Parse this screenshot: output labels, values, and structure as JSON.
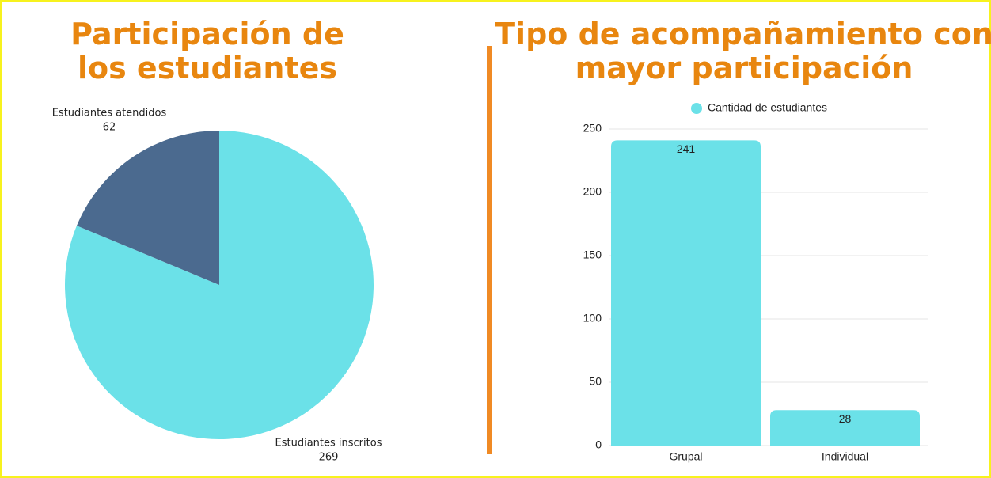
{
  "chart_data": [
    {
      "type": "pie",
      "title": "Participación de los estudiantes",
      "categories": [
        "Estudiantes inscritos",
        "Estudiantes atendidos"
      ],
      "values": [
        269,
        62
      ],
      "colors": [
        "#6be1e8",
        "#4b6a8f"
      ]
    },
    {
      "type": "bar",
      "title": "Tipo de acompañamiento con mayor participación",
      "categories": [
        "Grupal",
        "Individual"
      ],
      "series": [
        {
          "name": "Cantidad de estudiantes",
          "color": "#6be1e8",
          "values": [
            241,
            28
          ]
        }
      ],
      "ylim": [
        0,
        250
      ],
      "yticks": [
        0,
        50,
        100,
        150,
        200,
        250
      ],
      "grid": true,
      "legend": "top"
    }
  ]
}
